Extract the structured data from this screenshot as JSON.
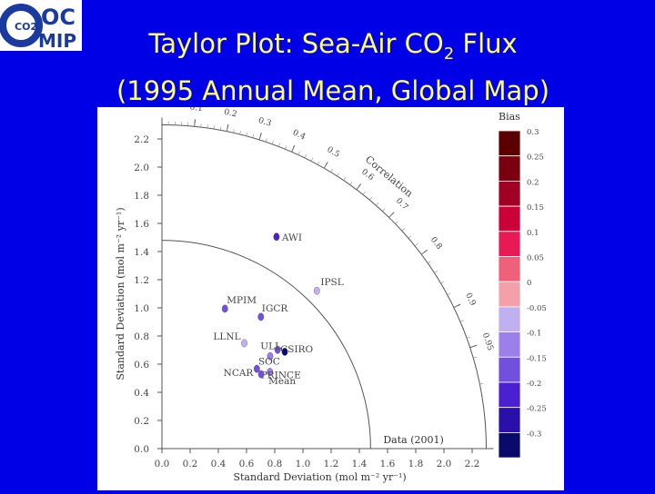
{
  "slide": {
    "title_pre": "Taylor Plot: Sea-Air CO",
    "title_sub": "2",
    "title_post": " Flux",
    "title_line2": "(1995 Annual Mean, Global Map)",
    "background": "#0000e6",
    "title_color": "#ffff66"
  },
  "logo": {
    "text_oc": "OC",
    "text_mip": "MIP",
    "text_co2": "CO2",
    "color": "#1a3aa0"
  },
  "chart_data": {
    "type": "scatter",
    "subtype": "taylor-diagram",
    "xlabel": "Standard Deviation (mol m⁻² yr⁻¹)",
    "ylabel": "Standard Deviation (mol m⁻² yr⁻¹)",
    "xlim": [
      0,
      2.3
    ],
    "ylim": [
      0,
      2.3
    ],
    "ticks": [
      "0.0",
      "0.2",
      "0.4",
      "0.6",
      "0.8",
      "1.0",
      "1.2",
      "1.4",
      "1.6",
      "1.8",
      "2.0",
      "2.2"
    ],
    "correlation_label": "Correlation",
    "correlation_ticks": [
      "0.1",
      "0.2",
      "0.3",
      "0.4",
      "0.5",
      "0.6",
      "0.7",
      "0.8",
      "0.9",
      "0.95"
    ],
    "reference_label": "Data (2001)",
    "reference_std": 1.48,
    "legend": {
      "title": "Bias",
      "labels": [
        "0.3",
        "0.25",
        "0.2",
        "0.15",
        "0.1",
        "0.05",
        "0",
        "-0.05",
        "-0.1",
        "-0.15",
        "-0.2",
        "-0.25",
        "-0.3"
      ],
      "colors": [
        "#5a0000",
        "#7a0010",
        "#a00022",
        "#cc0038",
        "#e81a55",
        "#f0607a",
        "#f4a0a8",
        "#c0b0f0",
        "#9a80e8",
        "#7050dc",
        "#4a20d0",
        "#2a10a8",
        "#0a0a6a"
      ],
      "placement": "right"
    },
    "points": [
      {
        "label": "AWI",
        "std": 1.71,
        "corr": 0.475,
        "bias": -0.2
      },
      {
        "label": "IPSL",
        "std": 1.57,
        "corr": 0.7,
        "bias": -0.05
      },
      {
        "label": "MPIM",
        "std": 1.09,
        "corr": 0.41,
        "bias": -0.15
      },
      {
        "label": "IGCR",
        "std": 1.17,
        "corr": 0.6,
        "bias": -0.15
      },
      {
        "label": "CSIRO",
        "std": 1.08,
        "corr": 0.76,
        "bias": -0.15
      },
      {
        "label": "LLNL",
        "std": 0.95,
        "corr": 0.615,
        "bias": -0.05
      },
      {
        "label": "ULL",
        "std": 1.11,
        "corr": 0.785,
        "bias": -0.3
      },
      {
        "label": "SOC",
        "std": 1.01,
        "corr": 0.76,
        "bias": -0.1
      },
      {
        "label": "PRINCE",
        "std": 0.94,
        "corr": 0.815,
        "bias": -0.1
      },
      {
        "label": "NCAR",
        "std": 0.88,
        "corr": 0.765,
        "bias": -0.15
      },
      {
        "label": "Mean",
        "std": 0.88,
        "corr": 0.8,
        "bias": -0.15
      }
    ]
  }
}
